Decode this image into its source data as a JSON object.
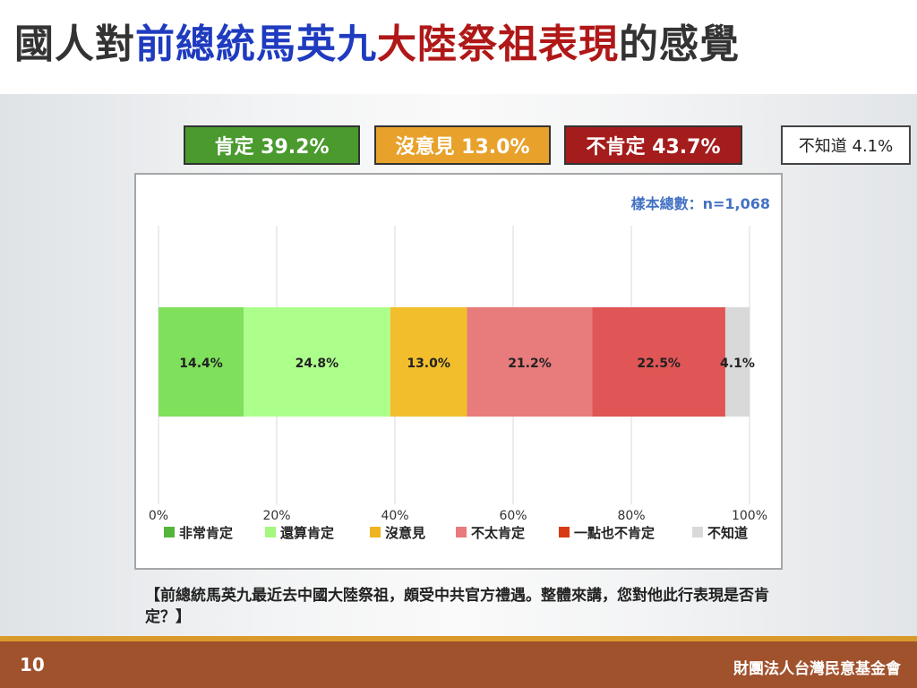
{
  "title": {
    "segments": [
      {
        "text": "國人對",
        "color": "#333333"
      },
      {
        "text": "前總統馬英九",
        "color": "#1f3bbf"
      },
      {
        "text": "大陸祭祖表現",
        "color": "#b01818"
      },
      {
        "text": "的感覺",
        "color": "#333333"
      }
    ]
  },
  "summary_boxes": [
    {
      "label": "肯定 39.2%",
      "color": "#4a9a2e"
    },
    {
      "label": "沒意見 13.0%",
      "color": "#e8a12a"
    },
    {
      "label": "不肯定 43.7%",
      "color": "#a51c1c"
    },
    {
      "label": "不知道 4.1%",
      "color": "#ffffff"
    }
  ],
  "sample_note": "樣本總數：n=1,068",
  "chart_data": {
    "type": "bar",
    "orientation": "horizontal",
    "stacked": true,
    "series": [
      {
        "name": "非常肯定",
        "value": 14.4,
        "label": "14.4%",
        "color": "#7fe05c",
        "legend_color": "#54b53a"
      },
      {
        "name": "還算肯定",
        "value": 24.8,
        "label": "24.8%",
        "color": "#adff8c",
        "legend_color": "#a4f880"
      },
      {
        "name": "沒意見",
        "value": 13.0,
        "label": "13.0%",
        "color": "#f2be2c",
        "legend_color": "#f0b320"
      },
      {
        "name": "不太肯定",
        "value": 21.2,
        "label": "21.2%",
        "color": "#e87b7b",
        "legend_color": "#e87b7b"
      },
      {
        "name": "一點也不肯定",
        "value": 22.5,
        "label": "22.5%",
        "color": "#e05555",
        "legend_color": "#d93a14"
      },
      {
        "name": "不知道",
        "value": 4.1,
        "label": "4.1%",
        "color": "#d9d9d9",
        "legend_color": "#d9d9d9"
      }
    ],
    "x_ticks": [
      "0%",
      "20%",
      "40%",
      "60%",
      "80%",
      "100%"
    ],
    "xlim": [
      0,
      100
    ],
    "grid": true,
    "legend_position": "bottom"
  },
  "question": "【前總統馬英九最近去中國大陸祭祖，頗受中共官方禮遇。整體來講，您對他此行表現是否肯定？】",
  "footer": {
    "page_number": "10",
    "organization": "財團法人台灣民意基金會"
  }
}
